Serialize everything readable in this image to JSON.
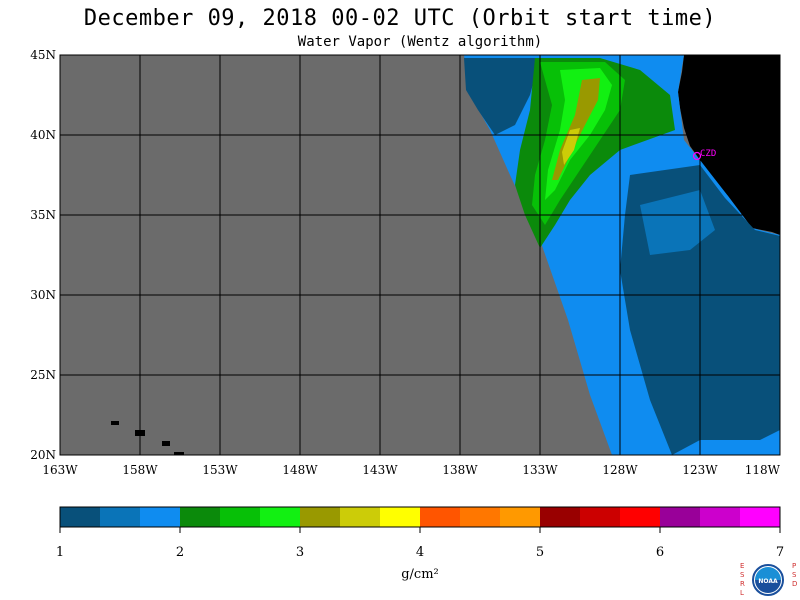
{
  "title": "December 09, 2018  00-02 UTC  (Orbit start time)",
  "subtitle": "Water Vapor (Wentz algorithm)",
  "map": {
    "lat_labels": [
      "45N",
      "40N",
      "35N",
      "30N",
      "25N",
      "20N"
    ],
    "lon_labels": [
      "163W",
      "158W",
      "153W",
      "148W",
      "143W",
      "138W",
      "133W",
      "128W",
      "123W",
      "118W"
    ],
    "station": "CZD"
  },
  "colorbar": {
    "ticks": [
      "1",
      "2",
      "3",
      "4",
      "5",
      "6",
      "7"
    ],
    "unit": "g/cm²",
    "colors": [
      "#08507a",
      "#0a74b8",
      "#0f8cf0",
      "#0b8a0b",
      "#07c007",
      "#12f012",
      "#999900",
      "#cccc08",
      "#ffff00",
      "#ff5500",
      "#ff7700",
      "#ff9900",
      "#990000",
      "#cc0000",
      "#ff0000",
      "#990099",
      "#cc00cc",
      "#ff00ff"
    ]
  },
  "logo": {
    "left": "ESRL",
    "right": "PSD",
    "center": "NOAA"
  },
  "colors": {
    "land_no_data": "#6b6b6b",
    "land": "#000000",
    "station": "#ff00ff"
  }
}
